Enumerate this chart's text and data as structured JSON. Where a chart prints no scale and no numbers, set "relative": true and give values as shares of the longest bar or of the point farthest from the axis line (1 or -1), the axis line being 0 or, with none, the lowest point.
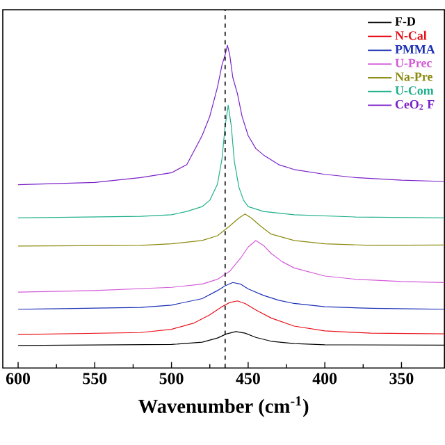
{
  "chart_data": {
    "type": "line",
    "relative": true,
    "xlabel": "Wavenumber (cm$^{-1}$)",
    "xlim": [
      610,
      322
    ],
    "xticks": [
      600,
      550,
      500,
      450,
      400,
      350
    ],
    "legend": "top right",
    "ref_lines": [
      {
        "axis": "x",
        "value": 465,
        "color": "#000000",
        "line_style": "dashed"
      }
    ],
    "series": [
      {
        "name": "F-D",
        "color": "#000000",
        "x": [
          600,
          500,
          480,
          470,
          464,
          458,
          452,
          445,
          435,
          420,
          400,
          322
        ],
        "values": [
          0.07,
          0.073,
          0.08,
          0.093,
          0.106,
          0.113,
          0.108,
          0.095,
          0.083,
          0.076,
          0.072,
          0.071
        ]
      },
      {
        "name": "N-Cal",
        "color": "#e8101a",
        "x": [
          600,
          520,
          500,
          485,
          475,
          467,
          462,
          457,
          452,
          445,
          435,
          420,
          400,
          370,
          322
        ],
        "values": [
          0.104,
          0.11,
          0.12,
          0.14,
          0.165,
          0.19,
          0.203,
          0.208,
          0.2,
          0.18,
          0.155,
          0.13,
          0.115,
          0.108,
          0.106
        ]
      },
      {
        "name": "PMMA",
        "color": "#1a2fb5",
        "x": [
          600,
          520,
          500,
          480,
          470,
          465,
          460,
          455,
          450,
          440,
          430,
          420,
          400,
          370,
          322
        ],
        "values": [
          0.182,
          0.188,
          0.195,
          0.215,
          0.24,
          0.255,
          0.265,
          0.26,
          0.245,
          0.225,
          0.21,
          0.2,
          0.19,
          0.185,
          0.182
        ]
      },
      {
        "name": "U-Prec",
        "color": "#d45ad8",
        "x": [
          600,
          550,
          500,
          480,
          470,
          462,
          455,
          450,
          445,
          440,
          435,
          428,
          420,
          400,
          380,
          350,
          322
        ],
        "values": [
          0.235,
          0.24,
          0.25,
          0.26,
          0.275,
          0.3,
          0.34,
          0.375,
          0.395,
          0.38,
          0.355,
          0.33,
          0.31,
          0.285,
          0.275,
          0.268,
          0.265
        ]
      },
      {
        "name": "Na-Pre",
        "color": "#8a8a10",
        "x": [
          600,
          520,
          500,
          480,
          470,
          462,
          456,
          452,
          448,
          442,
          435,
          420,
          400,
          370,
          322
        ],
        "values": [
          0.378,
          0.38,
          0.385,
          0.395,
          0.41,
          0.44,
          0.465,
          0.477,
          0.465,
          0.44,
          0.415,
          0.395,
          0.385,
          0.38,
          0.381
        ]
      },
      {
        "name": "U-Com",
        "color": "#1fb08a",
        "x": [
          600,
          520,
          500,
          490,
          480,
          475,
          470,
          467,
          465,
          463,
          461,
          459,
          456,
          453,
          450,
          440,
          420,
          380,
          322
        ],
        "values": [
          0.465,
          0.47,
          0.475,
          0.485,
          0.5,
          0.52,
          0.57,
          0.65,
          0.75,
          0.814,
          0.75,
          0.64,
          0.56,
          0.52,
          0.5,
          0.485,
          0.475,
          0.468,
          0.465
        ]
      },
      {
        "name": "CeO$_{2}$ F",
        "color": "#7a1fc8",
        "x": [
          600,
          550,
          520,
          500,
          490,
          480,
          475,
          470,
          467,
          465,
          463.5,
          462,
          460,
          457,
          454,
          450,
          445,
          440,
          430,
          420,
          400,
          380,
          350,
          322
        ],
        "values": [
          0.568,
          0.575,
          0.59,
          0.605,
          0.63,
          0.72,
          0.78,
          0.87,
          0.94,
          0.97,
          1.0,
          0.97,
          0.9,
          0.85,
          0.78,
          0.72,
          0.68,
          0.66,
          0.63,
          0.615,
          0.6,
          0.59,
          0.582,
          0.578
        ]
      }
    ]
  }
}
